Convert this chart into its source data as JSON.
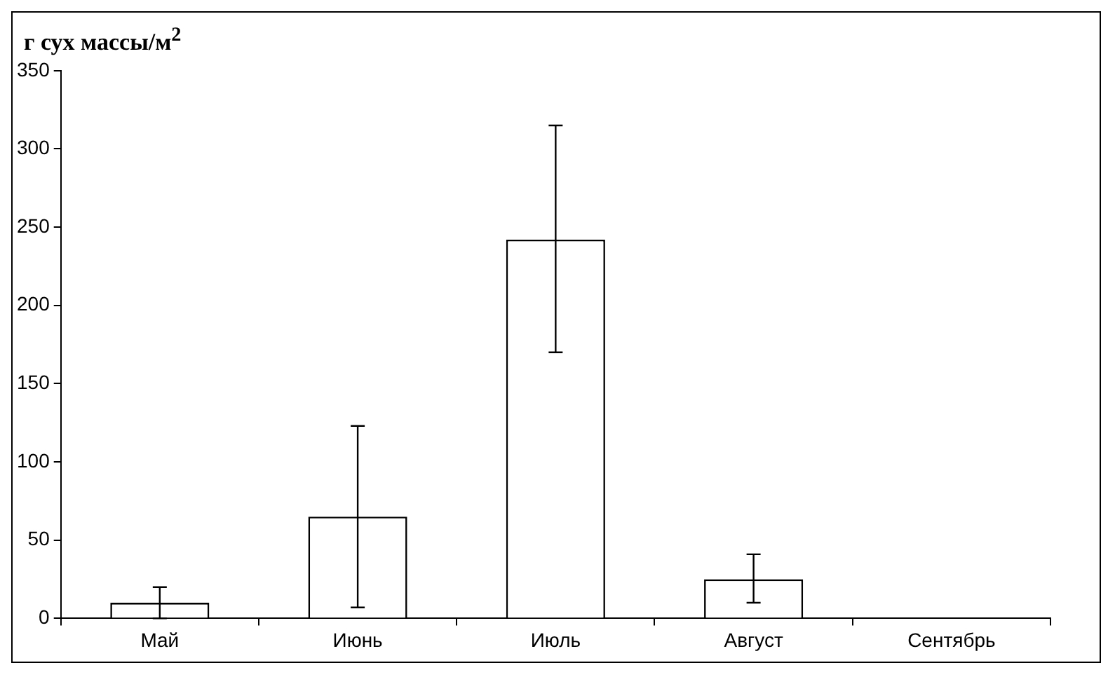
{
  "chart_data": {
    "type": "bar",
    "ylabel": "г сух массы/м$^{2}$",
    "categories": [
      "Май",
      "Июнь",
      "Июль",
      "Август",
      "Сентябрь"
    ],
    "values": [
      10,
      65,
      242,
      25,
      0
    ],
    "errors": [
      [
        0,
        20
      ],
      [
        7,
        123
      ],
      [
        170,
        315
      ],
      [
        10,
        41
      ],
      null
    ],
    "color": "#ffffff",
    "ylim": [
      0,
      350
    ],
    "yticks": [
      0,
      50,
      100,
      150,
      200,
      250,
      300,
      350
    ],
    "grid": false,
    "legend": false
  }
}
